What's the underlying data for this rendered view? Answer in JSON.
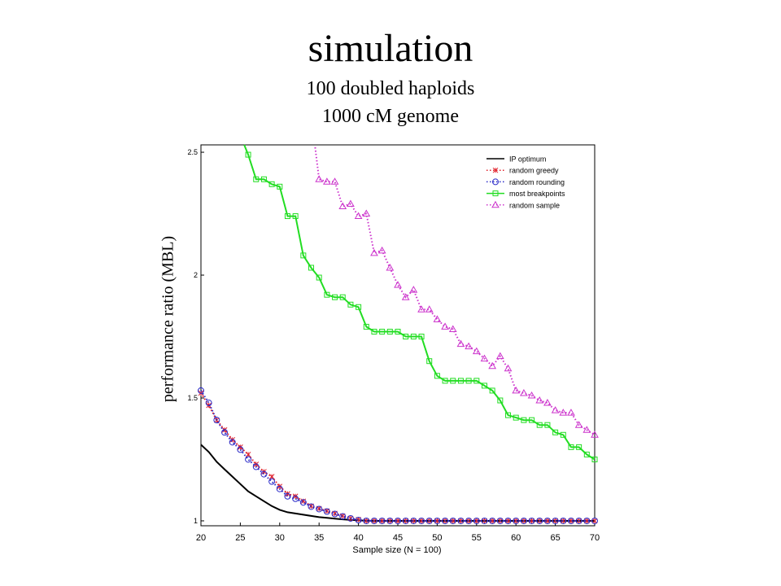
{
  "slide": {
    "title": "simulation",
    "subtitle_line1": "100 doubled haploids",
    "subtitle_line2": "1000 cM genome"
  },
  "chart_data": {
    "type": "line",
    "xlabel": "Sample size (N = 100)",
    "ylabel": "performance ratio (MBL)",
    "xlim": [
      20,
      70
    ],
    "ylim": [
      0.98,
      2.53
    ],
    "xticks": [
      20,
      25,
      30,
      35,
      40,
      45,
      50,
      55,
      60,
      65,
      70
    ],
    "yticks": [
      1,
      1.5,
      2,
      2.5
    ],
    "ytick_labels": [
      "1",
      "1.5",
      "2",
      "2.5"
    ],
    "legend_position": "top-right",
    "grid": false,
    "series": [
      {
        "name": "IP optimum",
        "color": "#000000",
        "line": "solid",
        "marker": "none",
        "x": [
          20,
          21,
          22,
          23,
          24,
          25,
          26,
          27,
          28,
          29,
          30,
          31,
          32,
          33,
          34,
          35,
          36,
          37,
          38,
          39,
          40,
          41,
          42,
          43,
          44,
          45,
          46,
          47,
          48,
          49,
          50,
          51,
          52,
          53,
          54,
          55,
          56,
          57,
          58,
          59,
          60,
          61,
          62,
          63,
          64,
          65,
          66,
          67,
          68,
          69,
          70
        ],
        "y": [
          1.31,
          1.28,
          1.24,
          1.21,
          1.18,
          1.15,
          1.12,
          1.1,
          1.08,
          1.06,
          1.045,
          1.035,
          1.03,
          1.025,
          1.02,
          1.015,
          1.012,
          1.009,
          1.006,
          1.004,
          1.002,
          1.001,
          1.0,
          1.0,
          1.0,
          1.0,
          1.0,
          1.0,
          1.0,
          1.0,
          1.0,
          1.0,
          1.0,
          1.0,
          1.0,
          1.0,
          1.0,
          1.0,
          1.0,
          1.0,
          1.0,
          1.0,
          1.0,
          1.0,
          1.0,
          1.0,
          1.0,
          1.0,
          1.0,
          1.0,
          1.0
        ]
      },
      {
        "name": "random greedy",
        "color": "#e0202a",
        "line": "dotted",
        "marker": "x",
        "x": [
          20,
          21,
          22,
          23,
          24,
          25,
          26,
          27,
          28,
          29,
          30,
          31,
          32,
          33,
          34,
          35,
          36,
          37,
          38,
          39,
          40,
          41,
          42,
          43,
          44,
          45,
          46,
          47,
          48,
          49,
          50,
          51,
          52,
          53,
          54,
          55,
          56,
          57,
          58,
          59,
          60,
          61,
          62,
          63,
          64,
          65,
          66,
          67,
          68,
          69,
          70
        ],
        "y": [
          1.52,
          1.47,
          1.41,
          1.37,
          1.33,
          1.3,
          1.27,
          1.23,
          1.2,
          1.18,
          1.14,
          1.11,
          1.1,
          1.08,
          1.06,
          1.05,
          1.04,
          1.03,
          1.02,
          1.01,
          1.005,
          1.0,
          1.0,
          1.0,
          1.0,
          1.0,
          1.0,
          1.0,
          1.0,
          1.0,
          1.0,
          1.0,
          1.0,
          1.0,
          1.0,
          1.0,
          1.0,
          1.0,
          1.0,
          1.0,
          1.0,
          1.0,
          1.0,
          1.0,
          1.0,
          1.0,
          1.0,
          1.0,
          1.0,
          1.0,
          1.0
        ]
      },
      {
        "name": "random rounding",
        "color": "#2b2bc8",
        "line": "dotted",
        "marker": "o",
        "x": [
          20,
          21,
          22,
          23,
          24,
          25,
          26,
          27,
          28,
          29,
          30,
          31,
          32,
          33,
          34,
          35,
          36,
          37,
          38,
          39,
          40,
          41,
          42,
          43,
          44,
          45,
          46,
          47,
          48,
          49,
          50,
          51,
          52,
          53,
          54,
          55,
          56,
          57,
          58,
          59,
          60,
          61,
          62,
          63,
          64,
          65,
          66,
          67,
          68,
          69,
          70
        ],
        "y": [
          1.53,
          1.48,
          1.41,
          1.36,
          1.32,
          1.29,
          1.25,
          1.22,
          1.19,
          1.16,
          1.13,
          1.1,
          1.09,
          1.075,
          1.058,
          1.048,
          1.038,
          1.028,
          1.018,
          1.01,
          1.003,
          1.0,
          1.0,
          1.0,
          1.0,
          1.0,
          1.0,
          1.0,
          1.0,
          1.0,
          1.0,
          1.0,
          1.0,
          1.0,
          1.0,
          1.0,
          1.0,
          1.0,
          1.0,
          1.0,
          1.0,
          1.0,
          1.0,
          1.0,
          1.0,
          1.0,
          1.0,
          1.0,
          1.0,
          1.0,
          1.0
        ]
      },
      {
        "name": "most breakpoints",
        "color": "#22dd22",
        "line": "solid",
        "marker": "square",
        "x": [
          25.5,
          26,
          27,
          28,
          29,
          30,
          31,
          32,
          33,
          34,
          35,
          36,
          37,
          38,
          39,
          40,
          41,
          42,
          43,
          44,
          45,
          46,
          47,
          48,
          49,
          50,
          51,
          52,
          53,
          54,
          55,
          56,
          57,
          58,
          59,
          60,
          61,
          62,
          63,
          64,
          65,
          66,
          67,
          68,
          69,
          70
        ],
        "y": [
          2.53,
          2.49,
          2.39,
          2.39,
          2.37,
          2.36,
          2.24,
          2.24,
          2.08,
          2.03,
          1.99,
          1.92,
          1.91,
          1.91,
          1.88,
          1.87,
          1.79,
          1.77,
          1.77,
          1.77,
          1.77,
          1.75,
          1.75,
          1.75,
          1.65,
          1.59,
          1.57,
          1.57,
          1.57,
          1.57,
          1.57,
          1.55,
          1.53,
          1.49,
          1.43,
          1.42,
          1.41,
          1.41,
          1.39,
          1.39,
          1.36,
          1.35,
          1.3,
          1.3,
          1.27,
          1.25
        ]
      },
      {
        "name": "random sample",
        "color": "#cc33cc",
        "line": "dotted",
        "marker": "triangle",
        "x": [
          34.5,
          35,
          36,
          37,
          38,
          39,
          40,
          41,
          42,
          43,
          44,
          45,
          46,
          47,
          48,
          49,
          50,
          51,
          52,
          53,
          54,
          55,
          56,
          57,
          58,
          59,
          60,
          61,
          62,
          63,
          64,
          65,
          66,
          67,
          68,
          69,
          70
        ],
        "y": [
          2.52,
          2.39,
          2.38,
          2.38,
          2.28,
          2.29,
          2.24,
          2.25,
          2.09,
          2.1,
          2.03,
          1.96,
          1.91,
          1.94,
          1.86,
          1.86,
          1.82,
          1.79,
          1.78,
          1.72,
          1.71,
          1.69,
          1.66,
          1.63,
          1.67,
          1.62,
          1.53,
          1.52,
          1.51,
          1.49,
          1.48,
          1.45,
          1.44,
          1.44,
          1.39,
          1.37,
          1.35
        ]
      }
    ]
  }
}
